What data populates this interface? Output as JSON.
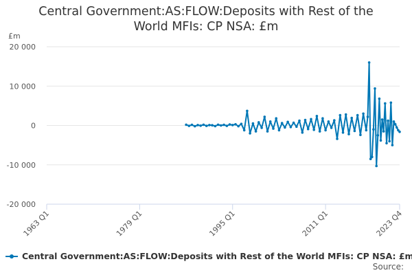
{
  "chart_data": {
    "type": "line",
    "title_lines": [
      "Central Government:AS:FLOW:Deposits with Rest of the",
      "World MFIs: CP NSA: £m"
    ],
    "ylabel": "£m",
    "xlabel": "",
    "x_ticks": [
      "1963 Q1",
      "1979 Q1",
      "1995 Q1",
      "2011 Q1",
      "2023 Q4"
    ],
    "y_ticks": [
      "20 000",
      "10 000",
      "0",
      "-10 000",
      "-20 000"
    ],
    "ylim": [
      -20000,
      20000
    ],
    "xlim": [
      1963.0,
      2023.75
    ],
    "grid": true,
    "legend_position": "bottom-left",
    "series": [
      {
        "name": "Central Government:AS:FLOW:Deposits with Rest of the World MFIs: CP NSA: £m",
        "color": "#0077b6",
        "x": [
          1987.0,
          1987.5,
          1988.0,
          1988.5,
          1989.0,
          1989.5,
          1990.0,
          1990.5,
          1991.0,
          1991.5,
          1992.0,
          1992.5,
          1993.0,
          1993.5,
          1994.0,
          1994.5,
          1995.0,
          1995.5,
          1996.0,
          1996.5,
          1997.0,
          1997.5,
          1998.0,
          1998.5,
          1999.0,
          1999.5,
          2000.0,
          2000.5,
          2001.0,
          2001.5,
          2002.0,
          2002.5,
          2003.0,
          2003.5,
          2004.0,
          2004.5,
          2005.0,
          2005.5,
          2006.0,
          2006.5,
          2007.0,
          2007.5,
          2008.0,
          2008.5,
          2009.0,
          2009.5,
          2010.0,
          2010.5,
          2011.0,
          2011.5,
          2012.0,
          2012.5,
          2013.0,
          2013.5,
          2014.0,
          2014.5,
          2015.0,
          2015.5,
          2016.0,
          2016.5,
          2017.0,
          2017.5,
          2018.0,
          2018.25,
          2018.5,
          2018.75,
          2019.0,
          2019.25,
          2019.5,
          2019.75,
          2020.0,
          2020.25,
          2020.5,
          2020.75,
          2021.0,
          2021.25,
          2021.5,
          2021.75,
          2022.0,
          2022.25,
          2022.5,
          2022.75,
          2023.0,
          2023.25,
          2023.5,
          2023.75
        ],
        "values": [
          200,
          -100,
          150,
          -200,
          100,
          -50,
          200,
          -100,
          100,
          50,
          -150,
          200,
          0,
          150,
          -100,
          250,
          100,
          300,
          -200,
          400,
          -1200,
          3700,
          -2000,
          500,
          -1500,
          800,
          -600,
          2200,
          -1500,
          1000,
          -800,
          1800,
          -1200,
          600,
          -500,
          900,
          -400,
          700,
          -300,
          1200,
          -1800,
          1400,
          -900,
          1600,
          -1100,
          2400,
          -1500,
          1800,
          -1200,
          1000,
          -600,
          1300,
          -3400,
          2600,
          -1800,
          2800,
          -2200,
          1900,
          -1400,
          2600,
          -2400,
          3000,
          -1200,
          2200,
          16000,
          -8500,
          -8000,
          -1000,
          9400,
          -10300,
          -2500,
          6800,
          -3800,
          1500,
          -1500,
          5600,
          -4500,
          1200,
          -4000,
          5800,
          -5000,
          1000,
          300,
          -500,
          -1200,
          -1600
        ]
      }
    ],
    "source_label": "Source:"
  }
}
